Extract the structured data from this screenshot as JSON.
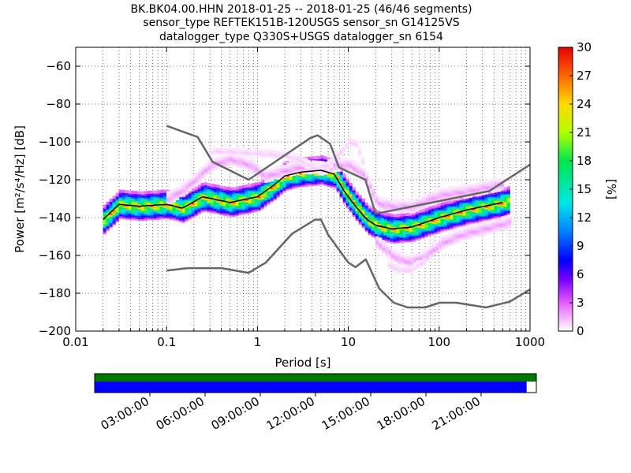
{
  "title": {
    "line1": "BK.BK04.00.HHN   2018-01-25 -- 2018-01-25  (46/46 segments)",
    "line2": "sensor_type REFTEK151B-120USGS sensor_sn G14125VS",
    "line3": "datalogger_type Q330S+USGS datalogger_sn 6154"
  },
  "chart_data": {
    "type": "heatmap",
    "xlabel": "Period [s]",
    "ylabel": "Power [m²/s⁴/Hz] [dB]",
    "x_scale": "log",
    "xlim": [
      0.01,
      1000
    ],
    "ylim": [
      -200,
      -50
    ],
    "x_ticks": [
      {
        "value": 0.01,
        "label": "0.01"
      },
      {
        "value": 0.1,
        "label": "0.1"
      },
      {
        "value": 1,
        "label": "1"
      },
      {
        "value": 10,
        "label": "10"
      },
      {
        "value": 100,
        "label": "100"
      },
      {
        "value": 1000,
        "label": "1000"
      }
    ],
    "y_ticks": [
      {
        "value": -60,
        "label": "−60"
      },
      {
        "value": -80,
        "label": "−80"
      },
      {
        "value": -100,
        "label": "−100"
      },
      {
        "value": -120,
        "label": "−120"
      },
      {
        "value": -140,
        "label": "−140"
      },
      {
        "value": -160,
        "label": "−160"
      },
      {
        "value": -180,
        "label": "−180"
      },
      {
        "value": -200,
        "label": "−200"
      }
    ],
    "grid": true,
    "colorbar": {
      "label": "[%]",
      "range": [
        0,
        30
      ],
      "ticks": [
        {
          "value": 0,
          "label": "0"
        },
        {
          "value": 3,
          "label": "3"
        },
        {
          "value": 6,
          "label": "6"
        },
        {
          "value": 9,
          "label": "9"
        },
        {
          "value": 12,
          "label": "12"
        },
        {
          "value": 15,
          "label": "15"
        },
        {
          "value": 18,
          "label": "18"
        },
        {
          "value": 21,
          "label": "21"
        },
        {
          "value": 24,
          "label": "24"
        },
        {
          "value": 27,
          "label": "27"
        },
        {
          "value": 30,
          "label": "30"
        }
      ]
    },
    "series": [
      {
        "role": "high-noise-model",
        "color": "#666666",
        "x": [
          0.1,
          0.22,
          0.32,
          0.8,
          3.8,
          4.6,
          6.3,
          7.9,
          15.4,
          20,
          354.8,
          1000
        ],
        "y": [
          -91.5,
          -97.4,
          -110.5,
          -120,
          -98,
          -96.5,
          -101,
          -113.5,
          -120,
          -138,
          -126,
          -112
        ]
      },
      {
        "role": "low-noise-model",
        "color": "#666666",
        "x": [
          0.1,
          0.17,
          0.4,
          0.8,
          1.24,
          2.4,
          4.3,
          5,
          6,
          10,
          12,
          15.6,
          21.9,
          31.6,
          45,
          70,
          101,
          154,
          328,
          600,
          1000
        ],
        "y": [
          -168,
          -166.7,
          -166.7,
          -169.2,
          -163.7,
          -148.6,
          -141.1,
          -141.1,
          -149,
          -163.8,
          -166.2,
          -162.1,
          -177.5,
          -185,
          -187.5,
          -187.5,
          -185,
          -185,
          -187.5,
          -184.4,
          -178
        ]
      },
      {
        "role": "mode",
        "color": "#000000",
        "x": [
          0.02,
          0.03,
          0.05,
          0.1,
          0.15,
          0.25,
          0.5,
          1,
          1.5,
          2,
          3,
          5,
          7,
          9,
          12,
          16,
          20,
          30,
          50,
          100,
          200,
          500
        ],
        "y": [
          -141,
          -133,
          -134,
          -133,
          -135,
          -129,
          -132,
          -129,
          -123,
          -118,
          -116,
          -115,
          -117,
          -126,
          -134,
          -141,
          -144,
          -146,
          -145,
          -140,
          -136,
          -132
        ]
      }
    ],
    "density_bands": [
      {
        "x": [
          0.02,
          0.03,
          0.05,
          0.1,
          0.15,
          0.25,
          0.5,
          1,
          1.5,
          2,
          3,
          5,
          7,
          9,
          12,
          16,
          20,
          30,
          50,
          100,
          200,
          500,
          600
        ],
        "y": [
          -141,
          -133,
          -134,
          -133,
          -135,
          -129,
          -132,
          -129,
          -123,
          -118,
          -116,
          -115,
          -117,
          -126,
          -134,
          -141,
          -144,
          -146,
          -145,
          -140,
          -136,
          -132,
          -131
        ],
        "half_width_db": 7,
        "peak_percent": 28
      },
      {
        "x": [
          0.1,
          0.15,
          0.2,
          0.3,
          0.5,
          0.8,
          1.2,
          2,
          3,
          5,
          7,
          10,
          15,
          20,
          30,
          50,
          100,
          200,
          500
        ],
        "y": [
          -130,
          -125,
          -120,
          -112,
          -109,
          -112,
          -118,
          -115,
          -113,
          -114,
          -112,
          -112,
          -118,
          -132,
          -134,
          -134,
          -128,
          -126,
          -122
        ],
        "half_width_db": 3,
        "peak_percent": 2
      },
      {
        "x": [
          0.3,
          0.5,
          1,
          2,
          3,
          4,
          6,
          8,
          10,
          12,
          15
        ],
        "y": [
          -105,
          -105,
          -106,
          -107,
          -110,
          -114,
          -112,
          -105,
          -100,
          -101,
          -115
        ],
        "half_width_db": 2,
        "peak_percent": 1
      },
      {
        "x": [
          20,
          30,
          40,
          50,
          70,
          100,
          150,
          200,
          300,
          500,
          600
        ],
        "y": [
          -153,
          -160,
          -163,
          -163,
          -160,
          -154,
          -150,
          -148,
          -146,
          -143,
          -142
        ],
        "half_width_db": 3,
        "peak_percent": 2
      },
      {
        "x": [
          25,
          40,
          50,
          70
        ],
        "y": [
          -165,
          -168,
          -167,
          -162
        ],
        "half_width_db": 2,
        "peak_percent": 1
      }
    ]
  },
  "timeline": {
    "ticks": [
      "03:00:00",
      "06:00:00",
      "09:00:00",
      "12:00:00",
      "15:00:00",
      "18:00:00",
      "21:00:00"
    ],
    "coverage_color": "#0000ff",
    "segment_color": "#007700",
    "coverage_fraction": 0.978
  }
}
